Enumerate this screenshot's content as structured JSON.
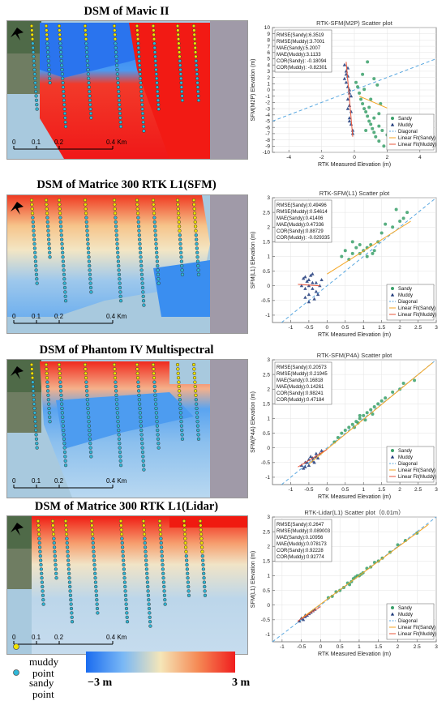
{
  "panels": [
    {
      "title": "DSM of Mavic II",
      "scale": {
        "labels": [
          "0",
          "0.1",
          "0.2",
          "0.4 Km"
        ]
      },
      "map_style": "mavic"
    },
    {
      "title": "DSM of Matrice 300 RTK L1(SFM)",
      "scale": {
        "labels": [
          "0",
          "0.1",
          "0.2",
          "0.4 Km"
        ]
      },
      "map_style": "sfm"
    },
    {
      "title": "DSM of Phantom IV Multispectral",
      "scale": {
        "labels": [
          "0",
          "0.1",
          "0.2",
          "0.4 Km"
        ]
      },
      "map_style": "p4a"
    },
    {
      "title": "DSM of Matrice 300 RTK L1(Lidar)",
      "scale": {
        "labels": [
          "0",
          "0.1",
          "0.2",
          "0.4 Km"
        ]
      },
      "map_style": "lidar"
    }
  ],
  "legend": {
    "muddy_label": [
      "muddy",
      "point"
    ],
    "sandy_label": [
      "sandy",
      "point"
    ],
    "muddy_color": "#f2e400",
    "sandy_color": "#2fb8d8",
    "colorbar_min": "−3 m",
    "colorbar_max": "3 m"
  },
  "chart_data": [
    {
      "type": "scatter",
      "title": "RTK-SFM(M2P) Scatter plot",
      "xlabel": "RTK Measured Elevation (m)",
      "ylabel": "SFM(M2P) Elevation (m)",
      "xlim": [
        -5,
        5
      ],
      "ylim": [
        -10,
        10
      ],
      "xticks": [
        -4,
        -2,
        0,
        2,
        4
      ],
      "yticks": [
        -10,
        -9,
        -8,
        -7,
        -6,
        -5,
        -4,
        -3,
        -2,
        -1,
        0,
        1,
        2,
        3,
        4,
        5,
        6,
        7,
        8,
        9,
        10
      ],
      "stats": [
        "RMSE(Sandy):6.3519",
        "RMSE(Muddy):3.7001",
        "MAE(Sandy):5.2007",
        "MAE(Muddy):3.1133",
        "COR(Sandy): -0.18094",
        "COR(Muddy): -0.82301"
      ],
      "legend_entries": [
        "Sandy",
        "Muddy",
        "Diagonal",
        "Linear Fit(Sandy)",
        "Linear Fit(Muddy)"
      ],
      "legend_position": "lower-right",
      "diagonal": [
        [
          -5,
          -5
        ],
        [
          5,
          5
        ]
      ],
      "fit_sandy": [
        [
          0.3,
          -1
        ],
        [
          2.0,
          -2.9
        ]
      ],
      "fit_muddy": [
        [
          -0.5,
          4.5
        ],
        [
          -0.1,
          -7.5
        ]
      ],
      "series": [
        {
          "name": "Sandy",
          "points": [
            [
              0.1,
              1.2
            ],
            [
              0.2,
              0.5
            ],
            [
              0.3,
              -0.5
            ],
            [
              0.4,
              -1.5
            ],
            [
              0.5,
              -2.2
            ],
            [
              0.6,
              -3.0
            ],
            [
              0.7,
              -3.5
            ],
            [
              0.8,
              -4.2
            ],
            [
              0.9,
              -5.0
            ],
            [
              1.0,
              -5.5
            ],
            [
              1.1,
              -6.2
            ],
            [
              1.2,
              -6.8
            ],
            [
              1.3,
              -7.5
            ],
            [
              1.5,
              -8.2
            ],
            [
              1.8,
              -9.0
            ],
            [
              0.9,
              -2.8
            ],
            [
              1.2,
              -4.5
            ],
            [
              1.5,
              -5.8
            ],
            [
              1.7,
              -6.5
            ],
            [
              2.0,
              -7.2
            ],
            [
              1.4,
              0.8
            ],
            [
              1.2,
              1.8
            ],
            [
              0.8,
              4.5
            ],
            [
              1.5,
              -3.8
            ],
            [
              0.6,
              0.1
            ],
            [
              1.0,
              -1.5
            ],
            [
              2.1,
              -8.0
            ],
            [
              0.7,
              -6.5
            ],
            [
              1.6,
              -2.2
            ],
            [
              0.5,
              2.5
            ]
          ]
        },
        {
          "name": "Muddy",
          "points": [
            [
              -0.6,
              4.0
            ],
            [
              -0.5,
              3.0
            ],
            [
              -0.4,
              2.2
            ],
            [
              -0.5,
              1.2
            ],
            [
              -0.4,
              0.5
            ],
            [
              -0.3,
              -0.5
            ],
            [
              -0.4,
              -1.5
            ],
            [
              -0.3,
              -2.5
            ],
            [
              -0.2,
              -3.5
            ],
            [
              -0.3,
              -4.5
            ],
            [
              -0.2,
              -5.5
            ],
            [
              -0.1,
              -6.5
            ],
            [
              -0.3,
              0.0
            ],
            [
              -0.5,
              2.5
            ],
            [
              -0.4,
              -3.0
            ],
            [
              -0.2,
              -1.0
            ],
            [
              -0.6,
              1.8
            ],
            [
              -0.3,
              -5.0
            ],
            [
              -0.1,
              -7.0
            ],
            [
              -0.4,
              3.5
            ]
          ]
        }
      ]
    },
    {
      "type": "scatter",
      "title": "RTK-SFM(L1) Scatter plot",
      "xlabel": "RTK Measured Elevation (m)",
      "ylabel": "SFM(L1) Elevation (m)",
      "xlim": [
        -1.5,
        3
      ],
      "ylim": [
        -1.25,
        3
      ],
      "xticks": [
        -1,
        -0.5,
        0,
        0.5,
        1,
        1.5,
        2,
        2.5,
        3
      ],
      "yticks": [
        -1,
        -0.5,
        0,
        0.5,
        1,
        1.5,
        2,
        2.5,
        3
      ],
      "stats": [
        "RMSE(Sandy):0.49496",
        "RMSE(Muddy):0.54614",
        "MAE(Sandy):0.41406",
        "MAE(Muddy):0.47336",
        "COR(Sandy):0.88729",
        "COR(Muddy): -0.029335"
      ],
      "legend_entries": [
        "Sandy",
        "Muddy",
        "Diagonal",
        "Linear Fit(Sandy)",
        "Linear Fit(Muddy)"
      ],
      "legend_position": "lower-right",
      "diagonal": [
        [
          -1.25,
          -1.25
        ],
        [
          3,
          3
        ]
      ],
      "fit_sandy": [
        [
          0,
          0.4
        ],
        [
          2.3,
          2.2
        ]
      ],
      "fit_muddy": [
        [
          -0.8,
          0.05
        ],
        [
          -0.2,
          0.0
        ]
      ],
      "series": [
        {
          "name": "Sandy",
          "points": [
            [
              0.5,
              1.2
            ],
            [
              0.7,
              1.1
            ],
            [
              0.8,
              1.3
            ],
            [
              0.9,
              1.1
            ],
            [
              1.0,
              1.2
            ],
            [
              1.1,
              1.3
            ],
            [
              1.2,
              1.4
            ],
            [
              1.3,
              1.2
            ],
            [
              1.4,
              1.5
            ],
            [
              0.6,
              0.9
            ],
            [
              1.5,
              1.8
            ],
            [
              1.8,
              2.0
            ],
            [
              2.0,
              2.2
            ],
            [
              2.1,
              2.3
            ],
            [
              1.1,
              1.0
            ],
            [
              0.9,
              1.4
            ],
            [
              0.7,
              1.5
            ],
            [
              1.6,
              2.1
            ],
            [
              1.9,
              2.6
            ],
            [
              2.2,
              2.5
            ],
            [
              0.4,
              1.0
            ],
            [
              1.25,
              1.1
            ]
          ]
        },
        {
          "name": "Muddy",
          "points": [
            [
              -0.6,
              0.3
            ],
            [
              -0.5,
              0.2
            ],
            [
              -0.4,
              0.1
            ],
            [
              -0.5,
              0.0
            ],
            [
              -0.4,
              -0.1
            ],
            [
              -0.3,
              -0.2
            ],
            [
              -0.5,
              -0.3
            ],
            [
              -0.6,
              -0.1
            ],
            [
              -0.4,
              0.4
            ],
            [
              -0.3,
              0.1
            ],
            [
              -0.7,
              0.0
            ],
            [
              -0.6,
              -0.4
            ],
            [
              -0.2,
              0.0
            ],
            [
              -0.35,
              -0.45
            ],
            [
              -0.45,
              0.35
            ],
            [
              -0.55,
              0.15
            ],
            [
              -0.25,
              -0.3
            ],
            [
              -0.65,
              0.25
            ],
            [
              -0.15,
              0.2
            ],
            [
              -0.5,
              -0.55
            ]
          ]
        }
      ]
    },
    {
      "type": "scatter",
      "title": "RTK-SFM(P4A) Scatter plot",
      "xlabel": "RTK Measured Elevation (m)",
      "ylabel": "SFM(P4A) Elevation (m)",
      "xlim": [
        -1.5,
        3
      ],
      "ylim": [
        -1.25,
        3
      ],
      "xticks": [
        -1,
        -0.5,
        0,
        0.5,
        1,
        1.5,
        2,
        2.5,
        3
      ],
      "yticks": [
        -1,
        -0.5,
        0,
        0.5,
        1,
        1.5,
        2,
        2.5,
        3
      ],
      "stats": [
        "RMSE(Sandy):0.20573",
        "RMSE(Muddy):0.21945",
        "MAE(Sandy):0.16818",
        "MAE(Muddy):0.14261",
        "COR(Sandy):0.98241",
        "COR(Muddy):0.47184"
      ],
      "legend_entries": [
        "Sandy",
        "Muddy",
        "Diagonal",
        "Linear Fit(Sandy)",
        "Linear Fit(Muddy)"
      ],
      "legend_position": "lower-right",
      "diagonal": [
        [
          -1.25,
          -1.25
        ],
        [
          3,
          3
        ]
      ],
      "fit_sandy": [
        [
          -0.5,
          -0.55
        ],
        [
          2.9,
          2.9
        ]
      ],
      "fit_muddy": [
        [
          -0.8,
          -0.65
        ],
        [
          0.0,
          -0.05
        ]
      ],
      "series": [
        {
          "name": "Sandy",
          "points": [
            [
              0.2,
              0.2
            ],
            [
              0.4,
              0.5
            ],
            [
              0.6,
              0.7
            ],
            [
              0.7,
              0.8
            ],
            [
              0.8,
              0.9
            ],
            [
              0.9,
              1.0
            ],
            [
              1.0,
              1.1
            ],
            [
              1.1,
              1.2
            ],
            [
              1.2,
              1.3
            ],
            [
              1.3,
              1.4
            ],
            [
              1.4,
              1.5
            ],
            [
              1.6,
              1.7
            ],
            [
              1.8,
              1.9
            ],
            [
              2.0,
              2.0
            ],
            [
              0.5,
              0.6
            ],
            [
              0.9,
              1.1
            ],
            [
              1.05,
              0.95
            ],
            [
              0.75,
              0.7
            ],
            [
              1.5,
              1.6
            ],
            [
              2.1,
              2.2
            ],
            [
              2.4,
              2.3
            ],
            [
              0.3,
              0.35
            ],
            [
              1.25,
              1.15
            ],
            [
              0.85,
              0.85
            ]
          ]
        },
        {
          "name": "Muddy",
          "points": [
            [
              -0.6,
              -0.5
            ],
            [
              -0.5,
              -0.4
            ],
            [
              -0.4,
              -0.35
            ],
            [
              -0.3,
              -0.3
            ],
            [
              -0.5,
              -0.6
            ],
            [
              -0.4,
              -0.45
            ],
            [
              -0.3,
              -0.2
            ],
            [
              -0.2,
              -0.2
            ],
            [
              -0.6,
              -0.65
            ],
            [
              -0.7,
              -0.6
            ],
            [
              -0.35,
              -0.5
            ],
            [
              -0.45,
              -0.3
            ],
            [
              -0.25,
              -0.35
            ],
            [
              -0.55,
              -0.5
            ],
            [
              -0.15,
              -0.1
            ],
            [
              -0.65,
              -0.7
            ]
          ]
        }
      ]
    },
    {
      "type": "scatter",
      "title": "RTK-Lidar(L1) Scatter plot（0.01m）",
      "xlabel": "RTK Measured Elevation (m)",
      "ylabel": "SFM(L1) Elevation (m)",
      "xlim": [
        -1.25,
        3
      ],
      "ylim": [
        -1.25,
        3
      ],
      "xticks": [
        -1,
        -0.5,
        0,
        0.5,
        1,
        1.5,
        2,
        2.5,
        3
      ],
      "yticks": [
        -1,
        -0.5,
        0,
        0.5,
        1,
        1.5,
        2,
        2.5,
        3
      ],
      "stats": [
        "RMSE(Sandy):0.2647",
        "RMSE(Muddy):0.089003",
        "MAE(Sandy):0.10956",
        "MAE(Muddy):0.078173",
        "COR(Sandy):0.92228",
        "COR(Muddy):0.92774"
      ],
      "legend_entries": [
        "Sandy",
        "Muddy",
        "Diagonal",
        "Linear Fit(Sandy)",
        "Linear Fit(Muddy)"
      ],
      "legend_position": "lower-right",
      "diagonal": [
        [
          -1.25,
          -1.25
        ],
        [
          3,
          3
        ]
      ],
      "fit_sandy": [
        [
          -0.5,
          -0.45
        ],
        [
          2.8,
          2.75
        ]
      ],
      "fit_muddy": [
        [
          -0.6,
          -0.55
        ],
        [
          0.0,
          -0.05
        ]
      ],
      "series": [
        {
          "name": "Sandy",
          "points": [
            [
              0.2,
              0.25
            ],
            [
              0.4,
              0.45
            ],
            [
              0.6,
              0.6
            ],
            [
              0.7,
              0.75
            ],
            [
              0.8,
              0.8
            ],
            [
              0.9,
              0.95
            ],
            [
              1.0,
              1.0
            ],
            [
              1.1,
              1.1
            ],
            [
              1.2,
              1.25
            ],
            [
              1.3,
              1.3
            ],
            [
              1.4,
              1.45
            ],
            [
              1.6,
              1.6
            ],
            [
              1.8,
              1.8
            ],
            [
              2.0,
              2.05
            ],
            [
              0.5,
              0.5
            ],
            [
              0.95,
              1.0
            ],
            [
              1.05,
              1.05
            ],
            [
              0.75,
              0.7
            ],
            [
              1.5,
              1.5
            ],
            [
              2.2,
              2.2
            ],
            [
              2.5,
              2.45
            ],
            [
              0.3,
              0.3
            ],
            [
              0.85,
              0.9
            ]
          ]
        },
        {
          "name": "Muddy",
          "points": [
            [
              -0.5,
              -0.45
            ],
            [
              -0.4,
              -0.4
            ],
            [
              -0.3,
              -0.3
            ],
            [
              -0.35,
              -0.35
            ],
            [
              -0.45,
              -0.5
            ],
            [
              -0.25,
              -0.25
            ],
            [
              -0.2,
              -0.2
            ],
            [
              -0.55,
              -0.55
            ],
            [
              -0.15,
              -0.15
            ],
            [
              -0.4,
              -0.35
            ]
          ]
        }
      ]
    }
  ]
}
